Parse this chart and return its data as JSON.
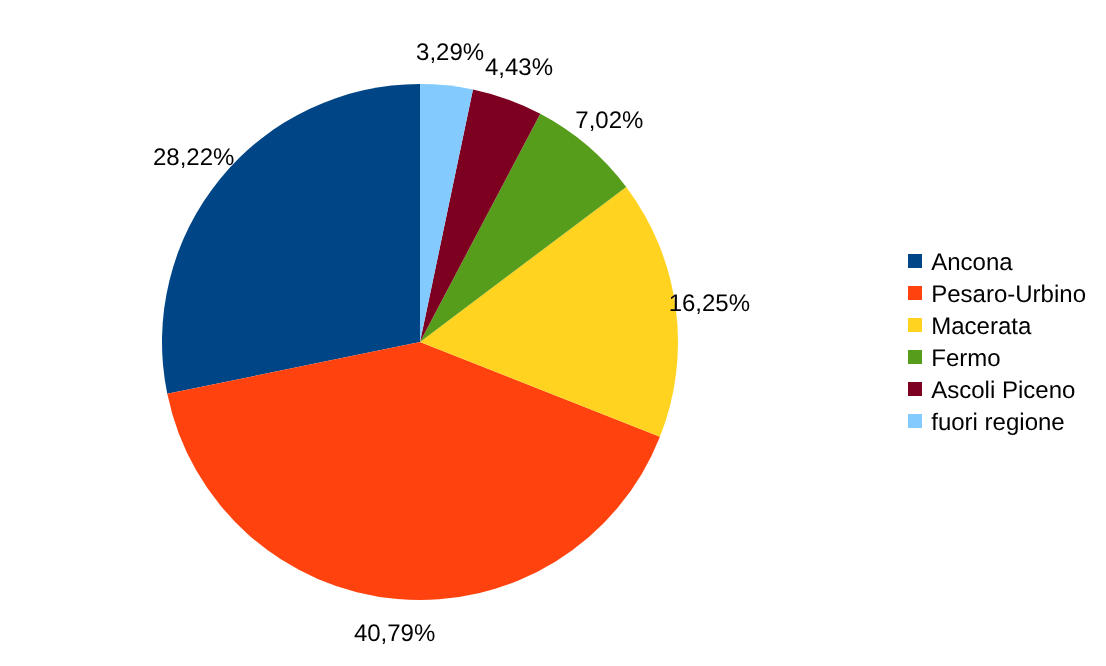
{
  "chart_data": {
    "type": "pie",
    "categories": [
      "Ancona",
      "Pesaro-Urbino",
      "Macerata",
      "Fermo",
      "Ascoli Piceno",
      "fuori regione"
    ],
    "values": [
      28.22,
      40.79,
      16.25,
      7.02,
      4.43,
      3.29
    ],
    "colors": [
      "#004586",
      "#ff420e",
      "#ffd320",
      "#579d1c",
      "#7e0021",
      "#83caff"
    ],
    "value_labels": [
      "28,22%",
      "40,79%",
      "16,25%",
      "7,02%",
      "4,43%",
      "3,29%"
    ],
    "legend": "right"
  }
}
